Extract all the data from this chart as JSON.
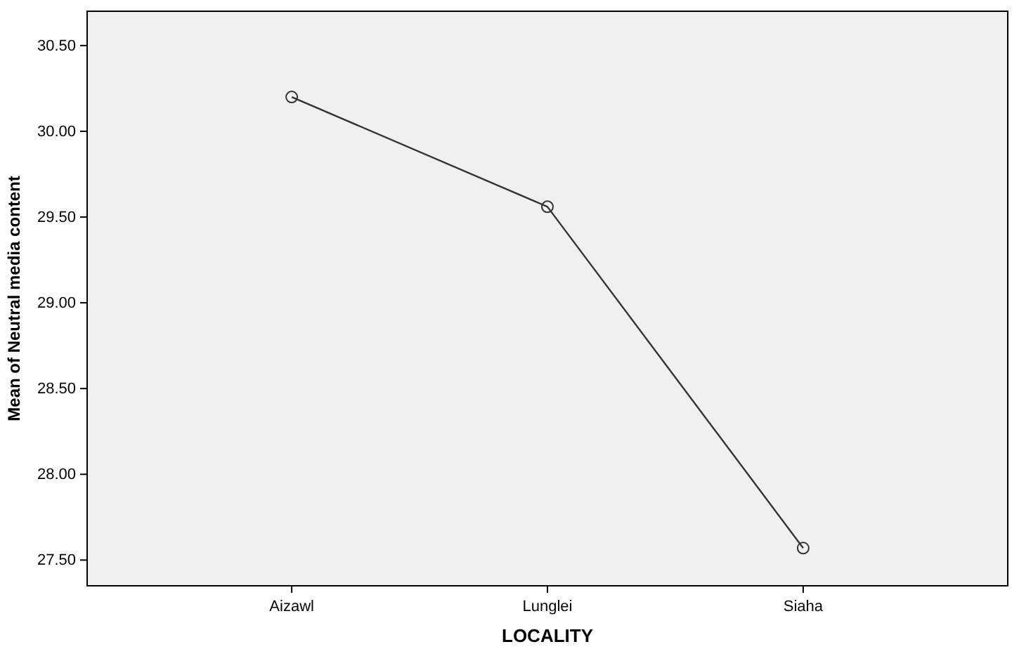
{
  "chart_data": {
    "type": "line",
    "xlabel": "LOCALITY",
    "ylabel": "Mean of Neutral media content",
    "categories": [
      "Aizawl",
      "Lunglei",
      "Siaha"
    ],
    "series": [
      {
        "color": "#333333",
        "values": [
          30.2,
          29.56,
          27.57
        ]
      }
    ],
    "ylim": [
      27.35,
      30.7
    ],
    "yticks": [
      {
        "value": 27.5,
        "label": "27.50"
      },
      {
        "value": 28,
        "label": "28.00"
      },
      {
        "value": 28.5,
        "label": "28.50"
      },
      {
        "value": 29,
        "label": "29.00"
      },
      {
        "value": 29.5,
        "label": "29.50"
      },
      {
        "value": 30,
        "label": "30.00"
      },
      {
        "value": 30.5,
        "label": "30.50"
      }
    ],
    "marker": "circle",
    "grid": false
  }
}
